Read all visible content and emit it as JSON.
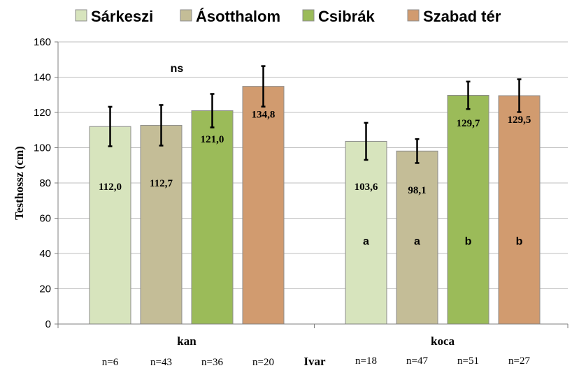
{
  "chart_data": {
    "type": "bar",
    "ylabel": "Testhossz (cm)",
    "xlabel": "Ivar",
    "ylim": [
      0,
      160
    ],
    "yticks": [
      0,
      20,
      40,
      60,
      80,
      100,
      120,
      140,
      160
    ],
    "ytick_labels": [
      "0",
      "20",
      "40",
      "60",
      "80",
      "100",
      "120",
      "140",
      "160"
    ],
    "grid": true,
    "legend_position": "top",
    "categories": [
      "kan",
      "koca"
    ],
    "series": [
      {
        "name": "Sárkeszi",
        "color": "#d7e4bd",
        "values": [
          112.0,
          103.6
        ],
        "value_labels": [
          "112,0",
          "103,6"
        ],
        "errors": [
          11.2,
          10.5
        ],
        "n": [
          "n=6",
          "n=18"
        ],
        "letters": [
          "",
          "a"
        ]
      },
      {
        "name": "Ásotthalom",
        "color": "#c4bd97",
        "values": [
          112.7,
          98.1
        ],
        "value_labels": [
          "112,7",
          "98,1"
        ],
        "errors": [
          11.5,
          6.8
        ],
        "n": [
          "n=43",
          "n=47"
        ],
        "letters": [
          "",
          "a"
        ]
      },
      {
        "name": "Csibrák",
        "color": "#9bbb59",
        "values": [
          121.0,
          129.7
        ],
        "value_labels": [
          "121,0",
          "129,7"
        ],
        "errors": [
          9.5,
          7.8
        ],
        "n": [
          "n=36",
          "n=51"
        ],
        "letters": [
          "",
          "b"
        ]
      },
      {
        "name": "Szabad tér",
        "color": "#d19b6f",
        "values": [
          134.8,
          129.5
        ],
        "value_labels": [
          "134,8",
          "129,5"
        ],
        "errors": [
          11.5,
          9.3
        ],
        "n": [
          "n=20",
          "n=27"
        ],
        "letters": [
          "",
          "b"
        ]
      }
    ],
    "group_annotations": [
      "ns",
      ""
    ]
  }
}
